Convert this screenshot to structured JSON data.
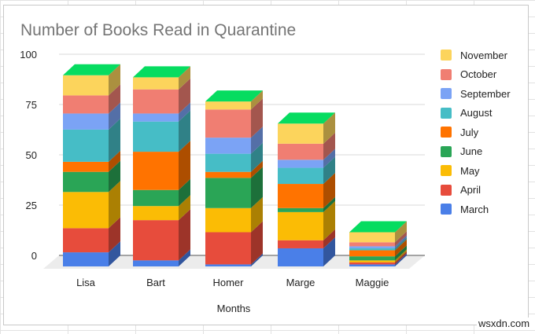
{
  "chart_data": {
    "type": "bar",
    "stacked": true,
    "three_d": true,
    "title": "Number of Books Read in Quarantine",
    "xlabel": "Months",
    "ylabel": "",
    "ylim": [
      0,
      100
    ],
    "yticks": [
      0,
      25,
      50,
      75,
      100
    ],
    "grid": true,
    "legend_position": "right",
    "categories": [
      "Lisa",
      "Bart",
      "Homer",
      "Marge",
      "Maggie"
    ],
    "series": [
      {
        "name": "March",
        "color": "#4a7fe8",
        "values": [
          7,
          3,
          1,
          9,
          1
        ]
      },
      {
        "name": "April",
        "color": "#e74c3c",
        "values": [
          12,
          20,
          16,
          4,
          1
        ]
      },
      {
        "name": "May",
        "color": "#fbbc05",
        "values": [
          18,
          7,
          12,
          14,
          1
        ]
      },
      {
        "name": "June",
        "color": "#2aa556",
        "values": [
          10,
          8,
          15,
          2,
          2
        ]
      },
      {
        "name": "July",
        "color": "#ff7300",
        "values": [
          5,
          19,
          3,
          12,
          3
        ]
      },
      {
        "name": "August",
        "color": "#46bdc6",
        "values": [
          16,
          15,
          9,
          8,
          1
        ]
      },
      {
        "name": "September",
        "color": "#7ba3f5",
        "values": [
          8,
          4,
          8,
          4,
          1
        ]
      },
      {
        "name": "October",
        "color": "#f07e72",
        "values": [
          9,
          12,
          14,
          8,
          2
        ]
      },
      {
        "name": "November",
        "color": "#fcd45c",
        "values": [
          10,
          6,
          4,
          10,
          5
        ]
      }
    ]
  },
  "legend_order": [
    "November",
    "October",
    "September",
    "August",
    "July",
    "June",
    "May",
    "April",
    "March"
  ],
  "watermark": "wsxdn.com"
}
